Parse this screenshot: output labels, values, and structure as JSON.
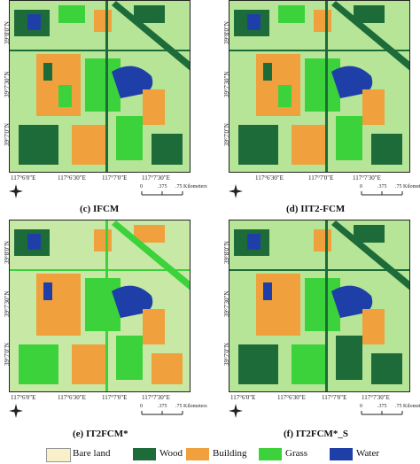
{
  "panels": [
    {
      "id": "c",
      "caption": "(c) IFCM",
      "lat": [
        "39°8'0\"N",
        "39°7'30\"N",
        "39°7'0\"N"
      ],
      "lon": [
        "117°6'0\"E",
        "117°6'30\"E",
        "117°7'0\"E",
        "117°7'30\"E"
      ]
    },
    {
      "id": "d",
      "caption": "(d) IIT2-FCM",
      "lat": [
        "39°8'0\"N",
        "39°7'30\"N",
        "39°7'0\"N"
      ],
      "lon": [
        "117°6'30\"E",
        "117°7'0\"E",
        "117°7'30\"E"
      ]
    },
    {
      "id": "e",
      "caption": "(e) IT2FCM*",
      "lat": [
        "39°8'0\"N",
        "39°7'30\"N",
        "39°7'0\"N"
      ],
      "lon": [
        "117°6'0\"E",
        "117°6'30\"E",
        "117°7'0\"E",
        "117°7'30\"E"
      ]
    },
    {
      "id": "f",
      "caption": "(f) IT2FCM*_S",
      "lat": [
        "39°8'0\"N",
        "39°7'30\"N",
        "39°7'0\"N"
      ],
      "lon": [
        "117°6'0\"E",
        "117°6'30\"E",
        "117°7'0\"E",
        "117°7'30\"E"
      ]
    }
  ],
  "scale": {
    "zero": "0",
    "mid": ".375",
    "end": ".75 Kilometers"
  },
  "north_label": "N",
  "legend": [
    {
      "label": "Bare land",
      "color": "#f7f0c8"
    },
    {
      "label": "Wood",
      "color": "#1e6b3a"
    },
    {
      "label": "Building",
      "color": "#f0a03c"
    },
    {
      "label": "Grass",
      "color": "#3cd23c"
    },
    {
      "label": "Water",
      "color": "#1f3fa8"
    }
  ]
}
